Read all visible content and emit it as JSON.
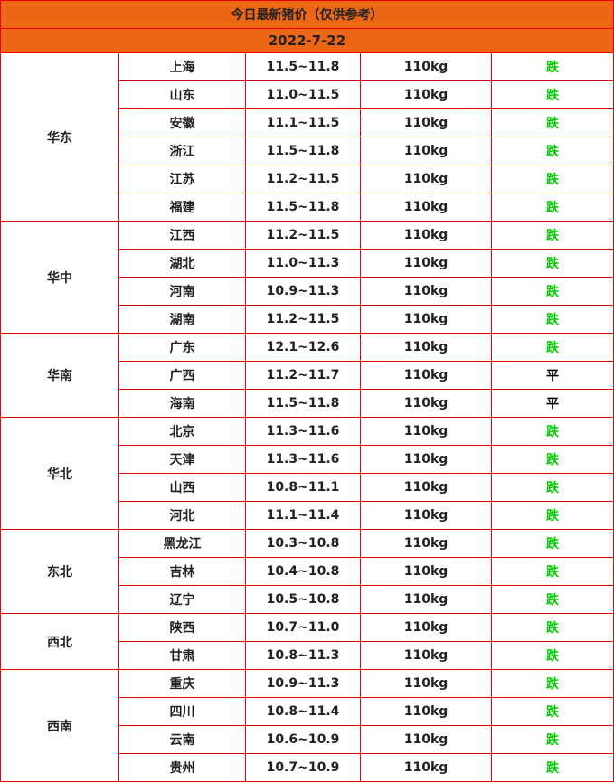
{
  "title": "今日最新猪价（仅供参考）",
  "date": "2022-7-22",
  "colors": {
    "header_bg": "#ec6616",
    "border": "#e60000",
    "down": "#00cc00",
    "flat": "#000000"
  },
  "regions": [
    {
      "name": "华东",
      "rows": [
        {
          "province": "上海",
          "price": "11.5~11.8",
          "weight": "110kg",
          "trend": "跌"
        },
        {
          "province": "山东",
          "price": "11.0~11.5",
          "weight": "110kg",
          "trend": "跌"
        },
        {
          "province": "安徽",
          "price": "11.1~11.5",
          "weight": "110kg",
          "trend": "跌"
        },
        {
          "province": "浙江",
          "price": "11.5~11.8",
          "weight": "110kg",
          "trend": "跌"
        },
        {
          "province": "江苏",
          "price": "11.2~11.5",
          "weight": "110kg",
          "trend": "跌"
        },
        {
          "province": "福建",
          "price": "11.5~11.8",
          "weight": "110kg",
          "trend": "跌"
        }
      ]
    },
    {
      "name": "华中",
      "rows": [
        {
          "province": "江西",
          "price": "11.2~11.5",
          "weight": "110kg",
          "trend": "跌"
        },
        {
          "province": "湖北",
          "price": "11.0~11.3",
          "weight": "110kg",
          "trend": "跌"
        },
        {
          "province": "河南",
          "price": "10.9~11.3",
          "weight": "110kg",
          "trend": "跌"
        },
        {
          "province": "湖南",
          "price": "11.2~11.5",
          "weight": "110kg",
          "trend": "跌"
        }
      ]
    },
    {
      "name": "华南",
      "rows": [
        {
          "province": "广东",
          "price": "12.1~12.6",
          "weight": "110kg",
          "trend": "跌"
        },
        {
          "province": "广西",
          "price": "11.2~11.7",
          "weight": "110kg",
          "trend": "平"
        },
        {
          "province": "海南",
          "price": "11.5~11.8",
          "weight": "110kg",
          "trend": "平"
        }
      ]
    },
    {
      "name": "华北",
      "rows": [
        {
          "province": "北京",
          "price": "11.3~11.6",
          "weight": "110kg",
          "trend": "跌"
        },
        {
          "province": "天津",
          "price": "11.3~11.6",
          "weight": "110kg",
          "trend": "跌"
        },
        {
          "province": "山西",
          "price": "10.8~11.1",
          "weight": "110kg",
          "trend": "跌"
        },
        {
          "province": "河北",
          "price": "11.1~11.4",
          "weight": "110kg",
          "trend": "跌"
        }
      ]
    },
    {
      "name": "东北",
      "rows": [
        {
          "province": "黑龙江",
          "price": "10.3~10.8",
          "weight": "110kg",
          "trend": "跌"
        },
        {
          "province": "吉林",
          "price": "10.4~10.8",
          "weight": "110kg",
          "trend": "跌"
        },
        {
          "province": "辽宁",
          "price": "10.5~10.8",
          "weight": "110kg",
          "trend": "跌"
        }
      ]
    },
    {
      "name": "西北",
      "rows": [
        {
          "province": "陕西",
          "price": "10.7~11.0",
          "weight": "110kg",
          "trend": "跌"
        },
        {
          "province": "甘肃",
          "price": "10.8~11.3",
          "weight": "110kg",
          "trend": "跌"
        }
      ]
    },
    {
      "name": "西南",
      "rows": [
        {
          "province": "重庆",
          "price": "10.9~11.3",
          "weight": "110kg",
          "trend": "跌"
        },
        {
          "province": "四川",
          "price": "10.8~11.4",
          "weight": "110kg",
          "trend": "跌"
        },
        {
          "province": "云南",
          "price": "10.6~10.9",
          "weight": "110kg",
          "trend": "跌"
        },
        {
          "province": "贵州",
          "price": "10.7~10.9",
          "weight": "110kg",
          "trend": "跌"
        }
      ]
    }
  ]
}
